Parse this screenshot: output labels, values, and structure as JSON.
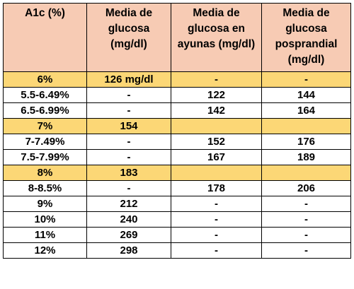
{
  "table": {
    "headers": [
      "A1c (%)",
      "Media de glucosa (mg/dl)",
      "Media de glucosa en ayunas (mg/dl)",
      "Media de glucosa posprandial (mg/dl)"
    ],
    "rows": [
      {
        "highlight": true,
        "cells": [
          "6%",
          "126 mg/dl",
          "-",
          "-"
        ]
      },
      {
        "highlight": false,
        "cells": [
          "5.5-6.49%",
          "-",
          "122",
          "144"
        ]
      },
      {
        "highlight": false,
        "cells": [
          "6.5-6.99%",
          "-",
          "142",
          "164"
        ]
      },
      {
        "highlight": true,
        "cells": [
          "7%",
          "154",
          "",
          ""
        ]
      },
      {
        "highlight": false,
        "cells": [
          "7-7.49%",
          "-",
          "152",
          "176"
        ]
      },
      {
        "highlight": false,
        "cells": [
          "7.5-7.99%",
          "-",
          "167",
          "189"
        ]
      },
      {
        "highlight": true,
        "cells": [
          "8%",
          "183",
          "",
          ""
        ]
      },
      {
        "highlight": false,
        "cells": [
          "8-8.5%",
          "-",
          "178",
          "206"
        ]
      },
      {
        "highlight": false,
        "cells": [
          "9%",
          "212",
          "-",
          "-"
        ]
      },
      {
        "highlight": false,
        "cells": [
          "10%",
          "240",
          "-",
          "-"
        ]
      },
      {
        "highlight": false,
        "cells": [
          "11%",
          "269",
          "-",
          "-"
        ]
      },
      {
        "highlight": false,
        "cells": [
          "12%",
          "298",
          "-",
          "-"
        ]
      }
    ]
  },
  "colors": {
    "header_bg": "#f7cbb4",
    "highlight_bg": "#fcd776"
  }
}
